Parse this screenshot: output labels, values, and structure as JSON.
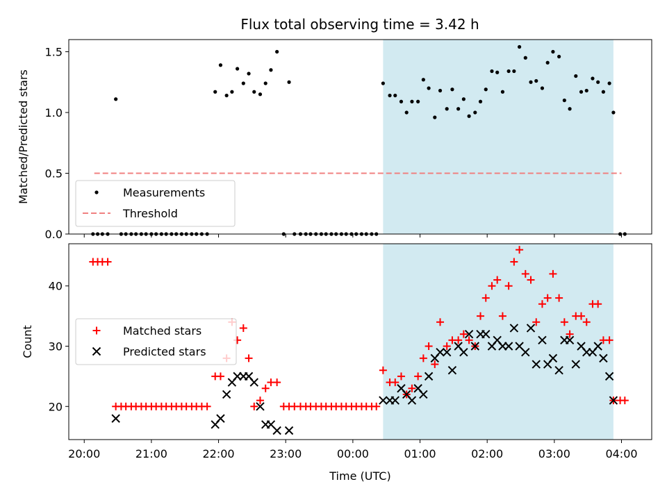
{
  "figure": {
    "title": "Flux total observing time = 3.42 h",
    "xlabel": "Time (UTC)"
  },
  "colors": {
    "shade": "#add8e6",
    "measurements": "#000000",
    "threshold": "#f08080",
    "matched": "#ff0000",
    "predicted": "#000000"
  },
  "chart_data": [
    {
      "type": "scatter",
      "title": "Flux total observing time = 3.42 h",
      "ylabel": "Matched/Predicted stars",
      "xlabel": "",
      "xlim": [
        19.77,
        28.45
      ],
      "ylim": [
        0,
        1.6
      ],
      "yticks": [
        0.0,
        0.5,
        1.0,
        1.5
      ],
      "ytick_labels": [
        "0.0",
        "0.5",
        "1.0",
        "1.5"
      ],
      "shaded_span": [
        24.45,
        27.88
      ],
      "legend_position": "lower-left",
      "threshold": {
        "name": "Threshold",
        "value": 0.5,
        "x_range": [
          20.15,
          28.0
        ]
      },
      "series": [
        {
          "name": "Measurements",
          "marker": "dot",
          "x": [
            20.13,
            20.2,
            20.27,
            20.35,
            20.47,
            20.55,
            20.62,
            20.7,
            20.77,
            20.85,
            20.92,
            21.0,
            21.07,
            21.15,
            21.22,
            21.3,
            21.37,
            21.45,
            21.52,
            21.6,
            21.67,
            21.75,
            21.83,
            21.95,
            22.03,
            22.12,
            22.2,
            22.28,
            22.37,
            22.45,
            22.53,
            22.62,
            22.7,
            22.78,
            22.87,
            22.97,
            23.05,
            23.13,
            23.22,
            23.3,
            23.37,
            23.45,
            23.53,
            23.6,
            23.68,
            23.75,
            23.83,
            23.9,
            23.98,
            24.05,
            24.13,
            24.2,
            24.28,
            24.35,
            24.45,
            24.55,
            24.63,
            24.72,
            24.8,
            24.88,
            24.97,
            25.05,
            25.13,
            25.22,
            25.3,
            25.4,
            25.48,
            25.57,
            25.65,
            25.73,
            25.82,
            25.9,
            25.98,
            26.07,
            26.15,
            26.23,
            26.32,
            26.4,
            26.48,
            26.57,
            26.65,
            26.73,
            26.82,
            26.9,
            26.98,
            27.07,
            27.15,
            27.23,
            27.32,
            27.4,
            27.48,
            27.57,
            27.65,
            27.73,
            27.82,
            27.88,
            27.98,
            28.05
          ],
          "y": [
            0,
            0,
            0,
            0,
            1.11,
            0,
            0,
            0,
            0,
            0,
            0,
            0,
            0,
            0,
            0,
            0,
            0,
            0,
            0,
            0,
            0,
            0,
            0,
            1.17,
            1.39,
            1.14,
            1.17,
            1.36,
            1.24,
            1.32,
            1.17,
            1.15,
            1.24,
            1.35,
            1.5,
            0,
            1.25,
            0,
            0,
            0,
            0,
            0,
            0,
            0,
            0,
            0,
            0,
            0,
            0,
            0,
            0,
            0,
            0,
            0,
            1.24,
            1.14,
            1.14,
            1.09,
            1.0,
            1.09,
            1.09,
            1.27,
            1.2,
            0.96,
            1.18,
            1.03,
            1.19,
            1.03,
            1.11,
            0.97,
            1.0,
            1.09,
            1.19,
            1.34,
            1.33,
            1.17,
            1.34,
            1.34,
            1.54,
            1.45,
            1.25,
            1.26,
            1.2,
            1.41,
            1.5,
            1.46,
            1.1,
            1.03,
            1.3,
            1.17,
            1.18,
            1.28,
            1.25,
            1.17,
            1.24,
            1.0,
            0,
            0
          ]
        }
      ]
    },
    {
      "type": "scatter",
      "ylabel": "Count",
      "xlabel": "Time (UTC)",
      "xlim": [
        19.77,
        28.45
      ],
      "ylim": [
        14.5,
        47
      ],
      "xticks": [
        20,
        21,
        22,
        23,
        24,
        25,
        26,
        27,
        28
      ],
      "xtick_labels": [
        "20:00",
        "21:00",
        "22:00",
        "23:00",
        "00:00",
        "01:00",
        "02:00",
        "03:00",
        "04:00"
      ],
      "yticks": [
        20,
        30,
        40
      ],
      "ytick_labels": [
        "20",
        "30",
        "40"
      ],
      "shaded_span": [
        24.45,
        27.88
      ],
      "legend_position": "center-left",
      "series": [
        {
          "name": "Matched stars",
          "marker": "plus",
          "x": [
            20.13,
            20.2,
            20.27,
            20.35,
            20.47,
            20.55,
            20.62,
            20.7,
            20.77,
            20.85,
            20.92,
            21.0,
            21.07,
            21.15,
            21.22,
            21.3,
            21.37,
            21.45,
            21.52,
            21.6,
            21.67,
            21.75,
            21.83,
            21.95,
            22.03,
            22.12,
            22.2,
            22.28,
            22.37,
            22.45,
            22.53,
            22.62,
            22.7,
            22.78,
            22.87,
            22.97,
            23.05,
            23.13,
            23.22,
            23.3,
            23.37,
            23.45,
            23.53,
            23.6,
            23.68,
            23.75,
            23.83,
            23.9,
            23.98,
            24.05,
            24.13,
            24.2,
            24.28,
            24.35,
            24.45,
            24.55,
            24.63,
            24.72,
            24.8,
            24.88,
            24.97,
            25.05,
            25.13,
            25.22,
            25.3,
            25.4,
            25.48,
            25.57,
            25.65,
            25.73,
            25.82,
            25.9,
            25.98,
            26.07,
            26.15,
            26.23,
            26.32,
            26.4,
            26.48,
            26.57,
            26.65,
            26.73,
            26.82,
            26.9,
            26.98,
            27.07,
            27.15,
            27.23,
            27.32,
            27.4,
            27.48,
            27.57,
            27.65,
            27.73,
            27.82,
            27.88,
            27.98,
            28.05
          ],
          "y": [
            44,
            44,
            44,
            44,
            20,
            20,
            20,
            20,
            20,
            20,
            20,
            20,
            20,
            20,
            20,
            20,
            20,
            20,
            20,
            20,
            20,
            20,
            20,
            25,
            25,
            28,
            34,
            31,
            33,
            28,
            20,
            21,
            23,
            24,
            24,
            20,
            20,
            20,
            20,
            20,
            20,
            20,
            20,
            20,
            20,
            20,
            20,
            20,
            20,
            20,
            20,
            20,
            20,
            20,
            26,
            24,
            24,
            25,
            22,
            23,
            25,
            28,
            30,
            27,
            34,
            30,
            31,
            31,
            32,
            31,
            30,
            35,
            38,
            40,
            41,
            35,
            40,
            44,
            46,
            42,
            41,
            34,
            37,
            38,
            42,
            38,
            34,
            32,
            35,
            35,
            34,
            37,
            37,
            31,
            31,
            21,
            21,
            21
          ]
        },
        {
          "name": "Predicted stars",
          "marker": "x",
          "x": [
            20.47,
            21.95,
            22.03,
            22.12,
            22.2,
            22.28,
            22.37,
            22.45,
            22.53,
            22.62,
            22.7,
            22.78,
            22.87,
            23.05,
            24.45,
            24.55,
            24.63,
            24.72,
            24.8,
            24.88,
            24.97,
            25.05,
            25.13,
            25.22,
            25.3,
            25.4,
            25.48,
            25.57,
            25.65,
            25.73,
            25.82,
            25.9,
            25.98,
            26.07,
            26.15,
            26.23,
            26.32,
            26.4,
            26.48,
            26.57,
            26.65,
            26.73,
            26.82,
            26.9,
            26.98,
            27.07,
            27.15,
            27.23,
            27.32,
            27.4,
            27.48,
            27.57,
            27.65,
            27.73,
            27.82,
            27.88
          ],
          "y": [
            18,
            17,
            18,
            22,
            24,
            25,
            25,
            25,
            24,
            20,
            17,
            17,
            16,
            16,
            21,
            21,
            21,
            23,
            22,
            21,
            23,
            22,
            25,
            28,
            29,
            29,
            26,
            30,
            29,
            32,
            30,
            32,
            32,
            30,
            31,
            30,
            30,
            33,
            30,
            29,
            33,
            27,
            31,
            27,
            28,
            26,
            31,
            31,
            27,
            30,
            29,
            29,
            30,
            28,
            25,
            21
          ]
        }
      ]
    }
  ]
}
